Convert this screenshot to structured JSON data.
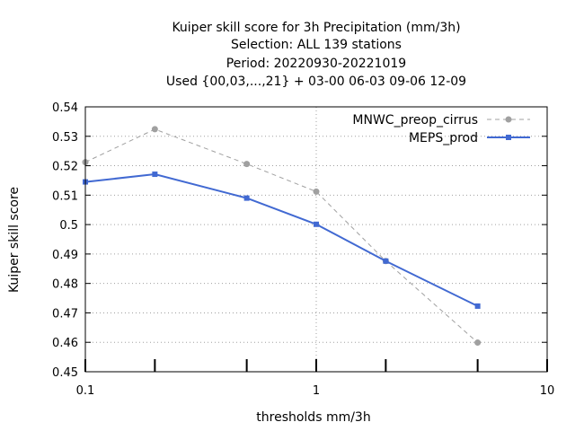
{
  "chart_data": {
    "type": "line",
    "title_lines": [
      "Kuiper skill score  for 3h Precipitation (mm/3h)",
      "Selection: ALL     139 stations",
      "Period: 20220930-20221019",
      "Used {00,03,...,21} + 03-00 06-03 09-06 12-09"
    ],
    "xlabel": "thresholds mm/3h",
    "ylabel": "Kuiper skill score",
    "x_scale": "log",
    "xlim": [
      0.1,
      10
    ],
    "ylim": [
      0.45,
      0.54
    ],
    "x_ticks": [
      0.1,
      1,
      10
    ],
    "x_tick_labels": [
      "0.1",
      "1",
      "10"
    ],
    "x_minor_ticks": [
      0.2,
      0.5,
      2,
      5
    ],
    "y_ticks": [
      0.45,
      0.46,
      0.47,
      0.48,
      0.49,
      0.5,
      0.51,
      0.52,
      0.53,
      0.54
    ],
    "y_tick_labels": [
      "0.45",
      "0.46",
      "0.47",
      "0.48",
      "0.49",
      "0.5",
      "0.51",
      "0.52",
      "0.53",
      "0.54"
    ],
    "grid": true,
    "legend_position": "top-right",
    "series": [
      {
        "name": "MNWC_preop_cirrus",
        "color": "#a0a0a0",
        "dashed": true,
        "marker": "circle",
        "x": [
          0.1,
          0.2,
          0.5,
          1,
          2,
          5
        ],
        "y": [
          0.5212,
          0.5324,
          0.5206,
          0.5112,
          0.4876,
          0.4599
        ]
      },
      {
        "name": "MEPS_prod",
        "color": "#4169d2",
        "dashed": false,
        "marker": "square",
        "x": [
          0.1,
          0.2,
          0.5,
          1,
          2,
          5
        ],
        "y": [
          0.5145,
          0.5171,
          0.509,
          0.5001,
          0.4876,
          0.4723
        ]
      }
    ]
  }
}
